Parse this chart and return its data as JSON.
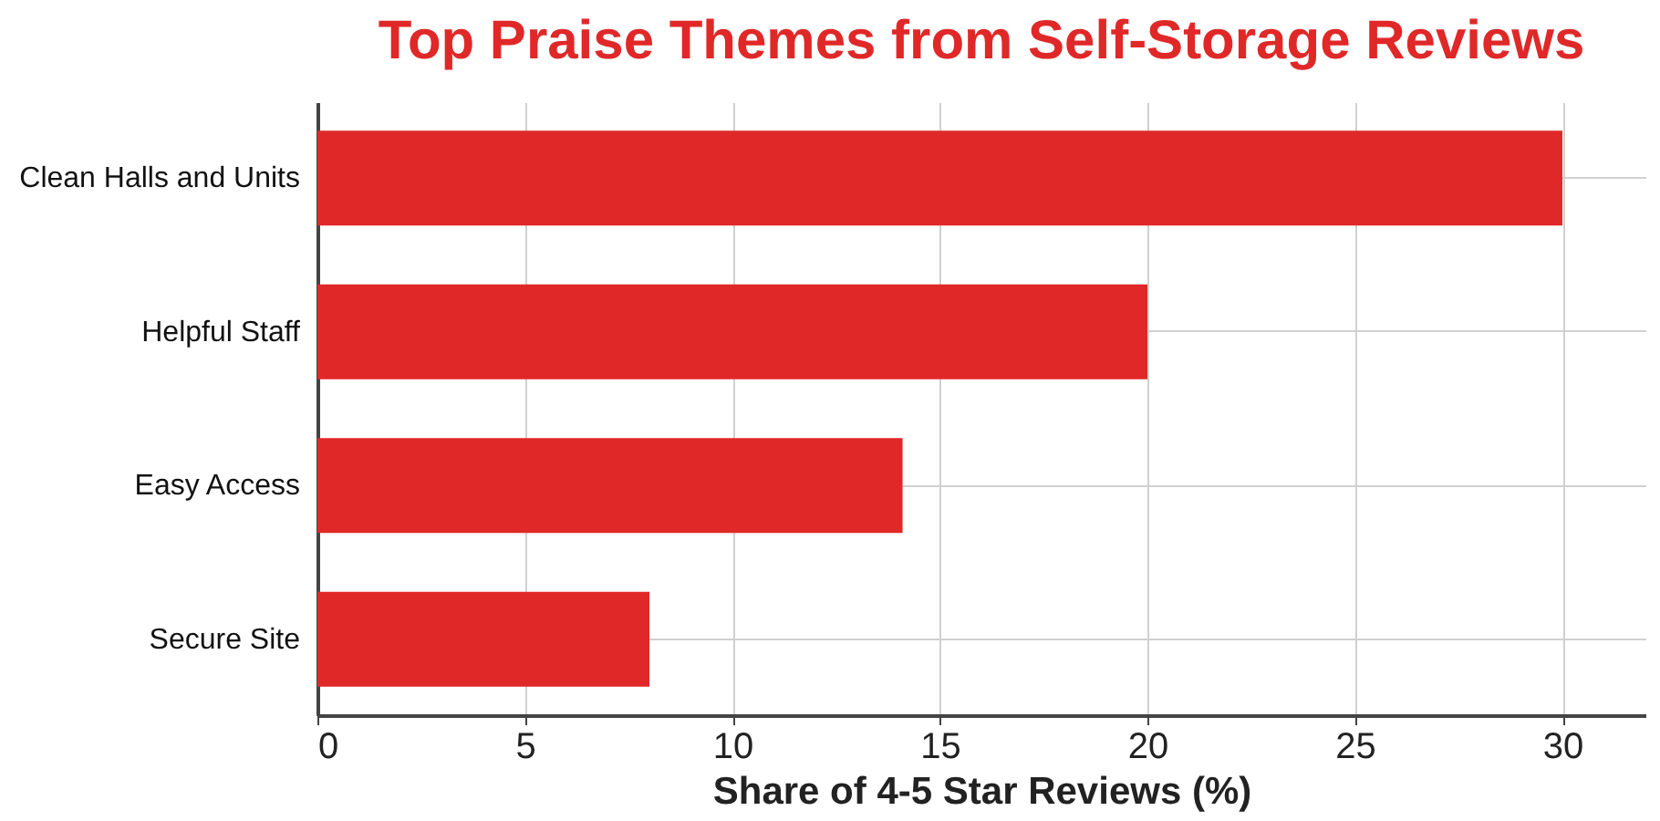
{
  "chart_data": {
    "type": "bar",
    "orientation": "horizontal",
    "title": "Top Praise Themes from Self-Storage Reviews",
    "xlabel": "Share of 4-5 Star Reviews (%)",
    "categories": [
      "Clean Halls and Units",
      "Helpful Staff",
      "Easy Access",
      "Secure Site"
    ],
    "values": [
      30,
      20,
      14.1,
      8
    ],
    "color": "#e02828",
    "xlim": [
      0,
      32
    ],
    "xticks": [
      0,
      5,
      10,
      15,
      20,
      25,
      30
    ],
    "grid": true
  }
}
